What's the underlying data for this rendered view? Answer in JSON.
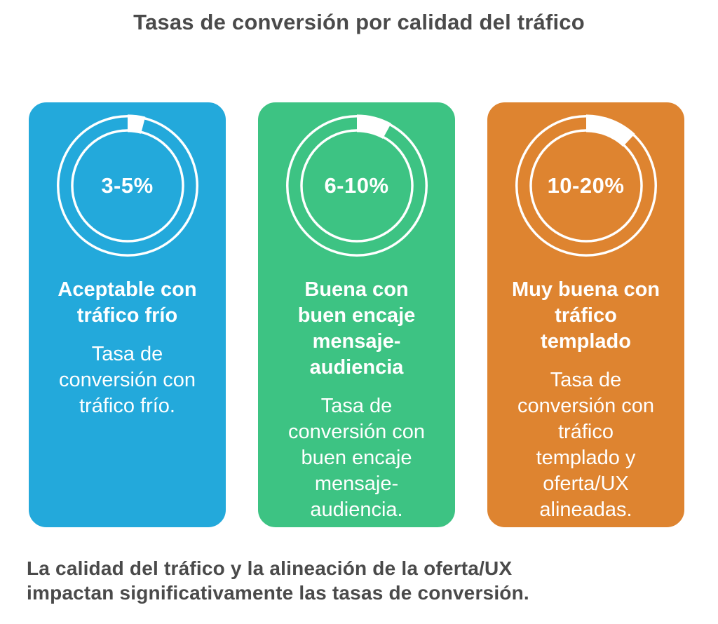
{
  "page": {
    "background": "#FFFFFF",
    "text_color": "#4A4A4A"
  },
  "title": "Tasas de conversión por calidad del tráfico",
  "cards": [
    {
      "id": "cold-traffic",
      "color": "#23A9DB",
      "rate": "3-5%",
      "heading": "Aceptable con\ntráfico frío",
      "description": "Tasa de\nconversión con\ntráfico frío.",
      "donut_fill_pct": 4
    },
    {
      "id": "message-audience-fit",
      "color": "#3DC383",
      "rate": "6-10%",
      "heading": "Buena con\nbuen encaje\nmensaje-\naudiencia",
      "description": "Tasa de\nconversión con\nbuen encaje\nmensaje-\naudiencia.",
      "donut_fill_pct": 8
    },
    {
      "id": "warm-traffic",
      "color": "#DE8430",
      "rate": "10-20%",
      "heading": "Muy buena con\ntráfico\ntemplado",
      "description": "Tasa de\nconversión con\ntráfico\ntemplado y\noferta/UX\nalineadas.",
      "donut_fill_pct": 12
    }
  ],
  "footer": {
    "text": "La calidad del tráfico y la alineación de la oferta/UX\nimpactan significativamente las tasas de conversión."
  },
  "chart_data": {
    "type": "pie",
    "subtype": "donut-gauges",
    "title": "Tasas de conversión por calidad del tráfico",
    "legend_position": "none",
    "gauges": [
      {
        "label": "Aceptable con tráfico frío",
        "description": "Tasa de conversión con tráfico frío.",
        "range_label": "3-5%",
        "min_pct": 3,
        "max_pct": 5,
        "displayed_fill_pct": 4,
        "color": "#23A9DB",
        "ring_color": "#FFFFFF",
        "fill_start_angle_deg": 0,
        "fill_direction": "clockwise"
      },
      {
        "label": "Buena con buen encaje mensaje-audiencia",
        "description": "Tasa de conversión con buen encaje mensaje-audiencia.",
        "range_label": "6-10%",
        "min_pct": 6,
        "max_pct": 10,
        "displayed_fill_pct": 8,
        "color": "#3DC383",
        "ring_color": "#FFFFFF",
        "fill_start_angle_deg": 0,
        "fill_direction": "clockwise"
      },
      {
        "label": "Muy buena con tráfico templado",
        "description": "Tasa de conversión con tráfico templado y oferta/UX alineadas.",
        "range_label": "10-20%",
        "min_pct": 10,
        "max_pct": 20,
        "displayed_fill_pct": 12,
        "color": "#DE8430",
        "ring_color": "#FFFFFF",
        "fill_start_angle_deg": 0,
        "fill_direction": "clockwise"
      }
    ]
  }
}
